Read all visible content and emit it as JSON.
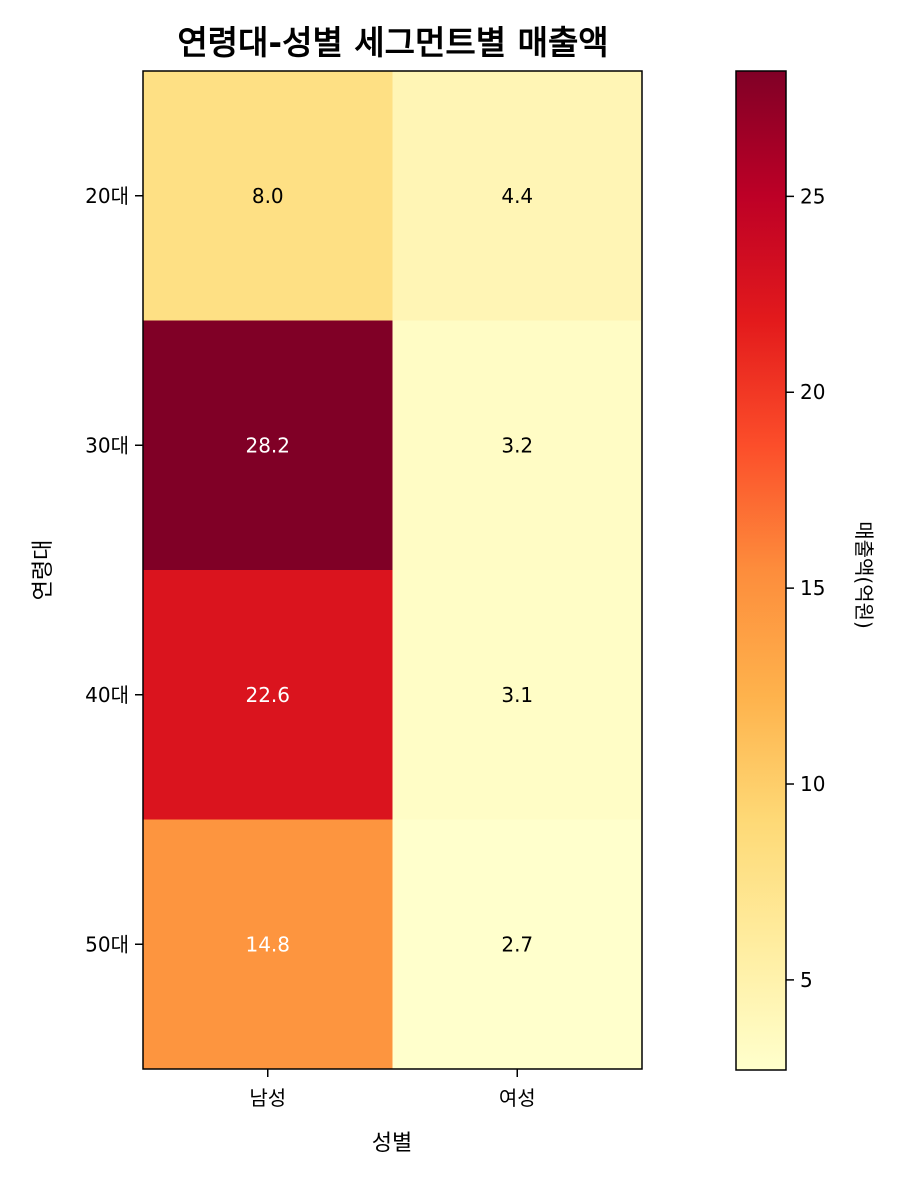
{
  "chart_data": {
    "type": "heatmap",
    "title": "연령대-성별 세그먼트별 매출액",
    "xlabel": "성별",
    "ylabel": "연령대",
    "x_categories": [
      "남성",
      "여성"
    ],
    "y_categories": [
      "20대",
      "30대",
      "40대",
      "50대"
    ],
    "values": [
      [
        8.0,
        4.4
      ],
      [
        28.2,
        3.2
      ],
      [
        22.6,
        3.1
      ],
      [
        14.8,
        2.7
      ]
    ],
    "value_labels": [
      [
        "8.0",
        "4.4"
      ],
      [
        "28.2",
        "3.2"
      ],
      [
        "22.6",
        "3.1"
      ],
      [
        "14.8",
        "2.7"
      ]
    ],
    "colormap": "YlOrRd",
    "vmin": 2.7,
    "vmax": 28.2,
    "colorbar": {
      "label": "매출액(억원)",
      "ticks": [
        5,
        10,
        15,
        20,
        25
      ],
      "tick_labels": [
        "5",
        "10",
        "15",
        "20",
        "25"
      ]
    },
    "grid": false
  }
}
